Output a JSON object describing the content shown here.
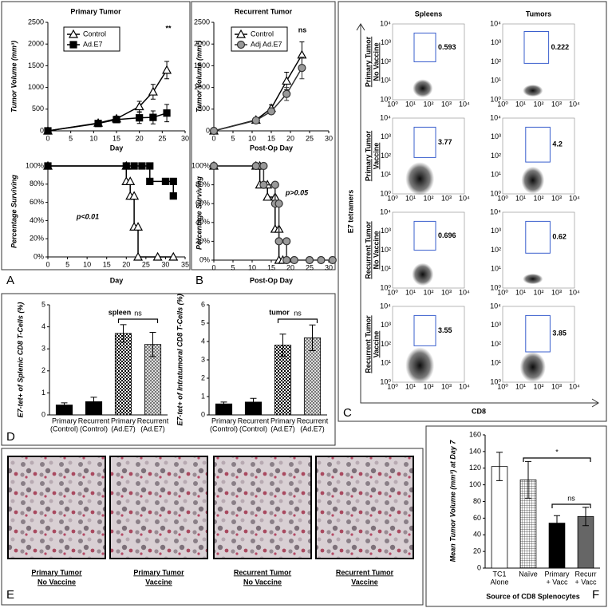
{
  "panel_labels": [
    "A",
    "B",
    "C",
    "D",
    "E",
    "F"
  ],
  "chart_data": [
    {
      "type": "line",
      "title": "Primary Tumor",
      "x_label": "Day",
      "y_label": "Tumor Volume (mm³)",
      "xlim": [
        0,
        30
      ],
      "xticks": [
        0,
        5,
        10,
        15,
        20,
        25,
        30
      ],
      "ylim": [
        0,
        2500
      ],
      "yticks": [
        0,
        500,
        1000,
        1500,
        2000,
        2500
      ],
      "series": [
        {
          "name": "Control",
          "color": "#000000",
          "fill": "#ffffff",
          "marker": "triangle",
          "x": [
            0,
            11,
            15,
            20,
            23,
            26
          ],
          "values": [
            0,
            180,
            280,
            560,
            900,
            1400
          ],
          "errors": [
            0,
            40,
            60,
            120,
            170,
            200
          ]
        },
        {
          "name": "Ad.E7",
          "color": "#000000",
          "fill": "#000000",
          "marker": "square",
          "x": [
            0,
            11,
            15,
            20,
            23,
            26
          ],
          "values": [
            0,
            170,
            260,
            300,
            310,
            410
          ],
          "errors": [
            0,
            30,
            50,
            130,
            150,
            200
          ]
        }
      ],
      "annotations": [
        "**"
      ]
    },
    {
      "type": "line",
      "x_label": "Day",
      "y_label": "Percentage Surviving",
      "xlim": [
        0,
        35
      ],
      "xticks": [
        0,
        5,
        10,
        15,
        20,
        25,
        30,
        35
      ],
      "ylim": [
        0,
        100
      ],
      "yticks": [
        {
          "value": 0,
          "label": "0%"
        },
        {
          "value": 20,
          "label": "20%"
        },
        {
          "value": 40,
          "label": "40%"
        },
        {
          "value": 60,
          "label": "60%"
        },
        {
          "value": 80,
          "label": "80%"
        },
        {
          "value": 100,
          "label": "100%"
        }
      ],
      "series": [
        {
          "color": "#000000",
          "fill": "#ffffff",
          "marker": "triangle",
          "x": [
            0,
            20,
            20,
            21,
            21,
            22,
            22,
            23,
            23,
            28,
            32
          ],
          "values": [
            100,
            100,
            83,
            83,
            67,
            67,
            33,
            33,
            0,
            0,
            0
          ]
        },
        {
          "color": "#000000",
          "fill": "#000000",
          "marker": "square",
          "x": [
            0,
            20,
            22,
            24,
            26,
            26,
            30,
            32,
            32
          ],
          "values": [
            100,
            100,
            100,
            100,
            100,
            83,
            83,
            83,
            67
          ]
        }
      ],
      "annotations": [
        "p<0.01"
      ]
    },
    {
      "type": "line",
      "title": "Recurrent Tumor",
      "x_label": "Post-Op Day",
      "y_label": "Tumor Volume (mm³)",
      "xlim": [
        0,
        30
      ],
      "xticks": [
        0,
        5,
        10,
        15,
        20,
        25,
        30
      ],
      "ylim": [
        0,
        2500
      ],
      "yticks": [
        0,
        500,
        1000,
        1500,
        2000,
        2500
      ],
      "series": [
        {
          "name": "Control",
          "color": "#000000",
          "fill": "#ffffff",
          "marker": "triangle",
          "x": [
            0,
            11,
            15,
            19,
            23
          ],
          "values": [
            0,
            250,
            520,
            1150,
            1750
          ],
          "errors": [
            0,
            30,
            80,
            200,
            300
          ]
        },
        {
          "name": "Adj Ad.E7",
          "color": "#333333",
          "fill": "#999999",
          "marker": "circle",
          "x": [
            0,
            11,
            15,
            19,
            23
          ],
          "values": [
            0,
            240,
            450,
            850,
            1450
          ],
          "errors": [
            0,
            30,
            60,
            150,
            250
          ]
        }
      ],
      "annotations": [
        "ns"
      ]
    },
    {
      "type": "line",
      "x_label": "Post-Op Day",
      "y_label": "Percentage Surviving",
      "xlim": [
        0,
        30
      ],
      "xticks": [
        0,
        5,
        10,
        15,
        20,
        25,
        30
      ],
      "ylim": [
        0,
        100
      ],
      "yticks": [
        {
          "value": 0,
          "label": "0%"
        },
        {
          "value": 20,
          "label": "20%"
        },
        {
          "value": 40,
          "label": "40%"
        },
        {
          "value": 60,
          "label": "60%"
        },
        {
          "value": 80,
          "label": "80%"
        },
        {
          "value": 100,
          "label": "100%"
        }
      ],
      "series": [
        {
          "color": "#000000",
          "fill": "#ffffff",
          "marker": "triangle",
          "x": [
            0,
            11,
            12,
            12,
            14,
            14,
            16,
            16,
            17,
            17,
            18
          ],
          "values": [
            100,
            100,
            100,
            80,
            80,
            67,
            67,
            33,
            33,
            0,
            0
          ]
        },
        {
          "color": "#333333",
          "fill": "#999999",
          "marker": "circle",
          "x": [
            0,
            11,
            13,
            13,
            16,
            16,
            17,
            17,
            19,
            19,
            21,
            25,
            28,
            31
          ],
          "values": [
            100,
            100,
            100,
            80,
            80,
            60,
            60,
            20,
            20,
            0,
            0,
            0,
            0,
            0
          ]
        }
      ],
      "annotations": [
        "p>0.05"
      ]
    },
    {
      "type": "bar",
      "title": "spleen",
      "y_label": "E7-tet+ of Splenic CD8 T-Cells (%)",
      "categories": [
        [
          "Primary",
          "(Control)"
        ],
        [
          "Recurrent",
          "(Control)"
        ],
        [
          "Primary",
          "(Ad.E7)"
        ],
        [
          "Recurrent",
          "(Ad.E7)"
        ]
      ],
      "values": [
        0.45,
        0.6,
        3.7,
        3.2
      ],
      "errors": [
        0.1,
        0.2,
        0.4,
        0.55
      ],
      "ylim": [
        0,
        5
      ],
      "yticks": [
        0,
        1,
        2,
        3,
        4,
        5
      ],
      "fills": [
        "solid",
        "solid",
        "checker",
        "checker-gray"
      ],
      "annotations": [
        "ns"
      ]
    },
    {
      "type": "bar",
      "title": "tumor",
      "y_label": "E7-tet+ of Intratumoral CD8 T-Cells (%)",
      "categories": [
        [
          "Primary",
          "(Control)"
        ],
        [
          "Recurrent",
          "(Control)"
        ],
        [
          "Primary",
          "(Ad.E7)"
        ],
        [
          "Recurrent",
          "(Ad.E7)"
        ]
      ],
      "values": [
        0.6,
        0.7,
        3.8,
        4.2
      ],
      "errors": [
        0.1,
        0.2,
        0.6,
        0.7
      ],
      "ylim": [
        0,
        6
      ],
      "yticks": [
        0,
        1,
        2,
        3,
        4,
        5,
        6
      ],
      "fills": [
        "solid",
        "solid",
        "checker",
        "checker-gray"
      ],
      "annotations": [
        "ns"
      ]
    },
    {
      "type": "bar",
      "x_label": "Source of CD8 Splenocytes",
      "y_label": "Mean Tumor Volume (mm³) at Day 7",
      "categories": [
        [
          "TC1",
          "Alone"
        ],
        [
          "Naïve"
        ],
        [
          "Primary",
          "+ Vacc"
        ],
        [
          "Recurr",
          "+ Vacc"
        ]
      ],
      "values": [
        122,
        106,
        54,
        62
      ],
      "errors": [
        17,
        22,
        9,
        11
      ],
      "ylim": [
        0,
        160
      ],
      "yticks": [
        0,
        20,
        40,
        60,
        80,
        100,
        120,
        140,
        160
      ],
      "fills": [
        "white",
        "grid",
        "solid",
        "gray"
      ],
      "annotations": [
        "*",
        "ns"
      ]
    }
  ],
  "flow": {
    "y_label": "E7 tetramers",
    "x_label": "CD8",
    "columns": [
      "Spleens",
      "Tumors"
    ],
    "tick_labels": [
      "10⁰",
      "10¹",
      "10²",
      "10³",
      "10⁴"
    ],
    "rows": [
      {
        "label": [
          "Primary Tumor",
          "No Vaccine"
        ],
        "gates": [
          0.593,
          0.222
        ]
      },
      {
        "label": [
          "Primary Tumor",
          "Vaccine"
        ],
        "gates": [
          3.77,
          4.2
        ]
      },
      {
        "label": [
          "Recurrent Tumor",
          "No Vaccine"
        ],
        "gates": [
          0.696,
          0.62
        ]
      },
      {
        "label": [
          "Recurrent Tumor",
          "Vaccine"
        ],
        "gates": [
          3.55,
          3.85
        ]
      }
    ]
  },
  "histology": {
    "labels": [
      [
        "Primary Tumor",
        "No Vaccine"
      ],
      [
        "Primary Tumor",
        "Vaccine"
      ],
      [
        "Recurrent Tumor",
        "No Vaccine"
      ],
      [
        "Recurrent Tumor",
        "Vaccine"
      ]
    ]
  }
}
